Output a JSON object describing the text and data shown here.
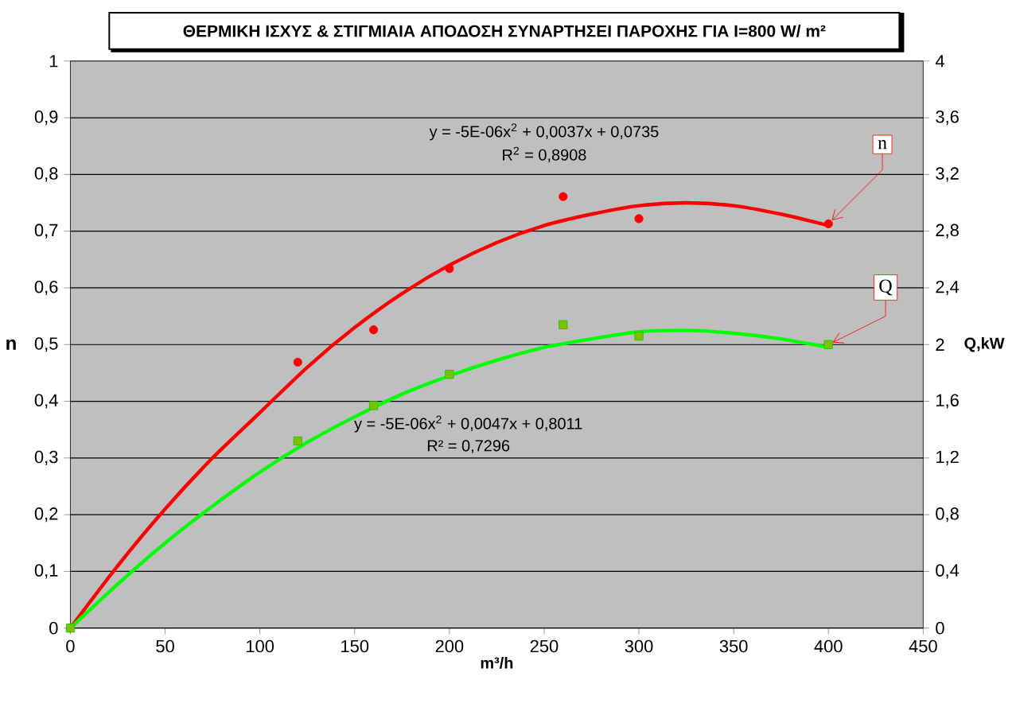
{
  "chart_data": {
    "type": "scatter",
    "title": "ΘΕΡΜΙΚΗ ΙΣΧΥΣ & ΣΤΙΓΜΙΑΙΑ ΑΠΟΔΟΣΗ ΣΥΝΑΡΤΗΣΕΙ ΠΑΡΟΧΗΣ ΓΙΑ  I=800 W/ m²",
    "xlabel": "m³/h",
    "ylabel": "n",
    "y2label": "Q,kW",
    "annotations": [
      "y = -5E-06x$^{2}$ + 0,0037x + 0,0735",
      "R$^{2}$ = 0,8908",
      "y = -5E-06x$^{2}$ + 0,0047x + 0,8011",
      "R² = 0,7296"
    ],
    "series": [
      {
        "name": "n",
        "marker": "circle",
        "color": "#ff0000",
        "x": [
          0,
          120,
          160,
          200,
          260,
          300,
          400
        ],
        "values": [
          0,
          0.469,
          0.526,
          0.634,
          0.761,
          0.722,
          0.713
        ]
      },
      {
        "type": "line",
        "color": "#ff0000",
        "x": [
          0,
          25,
          50,
          75,
          100,
          125,
          150,
          175,
          200,
          225,
          250,
          275,
          300,
          325,
          350,
          375,
          400
        ],
        "values": [
          0,
          0.11,
          0.21,
          0.3,
          0.38,
          0.46,
          0.53,
          0.59,
          0.64,
          0.68,
          0.71,
          0.73,
          0.745,
          0.75,
          0.745,
          0.73,
          0.71
        ]
      },
      {
        "name": "Q",
        "marker": "square",
        "axis": "y2",
        "color": "#80c000",
        "x": [
          0,
          120,
          160,
          200,
          260,
          300,
          400
        ],
        "values": [
          0,
          1.32,
          1.57,
          1.79,
          2.14,
          2.06,
          2.0
        ]
      },
      {
        "type": "line",
        "axis": "y2",
        "color": "#00ff00",
        "x": [
          0,
          25,
          50,
          75,
          100,
          125,
          150,
          175,
          200,
          225,
          250,
          275,
          300,
          325,
          350,
          375,
          400
        ],
        "values": [
          0,
          0.31,
          0.6,
          0.86,
          1.1,
          1.31,
          1.49,
          1.65,
          1.78,
          1.89,
          1.98,
          2.04,
          2.09,
          2.1,
          2.08,
          2.04,
          1.98
        ]
      }
    ],
    "xlim": [
      0,
      450
    ],
    "xticks": [
      0,
      50,
      100,
      150,
      200,
      250,
      300,
      350,
      400,
      450
    ],
    "ylim": [
      0,
      1
    ],
    "yticks": [
      0,
      {
        "value": 0.1,
        "label": "0,1"
      },
      {
        "value": 0.2,
        "label": "0,2"
      },
      {
        "value": 0.3,
        "label": "0,3"
      },
      {
        "value": 0.4,
        "label": "0,4"
      },
      {
        "value": 0.5,
        "label": "0,5"
      },
      {
        "value": 0.6,
        "label": "0,6"
      },
      {
        "value": 0.7,
        "label": "0,7"
      },
      {
        "value": 0.8,
        "label": "0,8"
      },
      {
        "value": 0.9,
        "label": "0,9"
      },
      1
    ],
    "y2lim": [
      0,
      4
    ],
    "y2ticks": [
      0,
      {
        "value": 0.4,
        "label": "0,4"
      },
      {
        "value": 0.8,
        "label": "0,8"
      },
      {
        "value": 1.2,
        "label": "1,2"
      },
      {
        "value": 1.6,
        "label": "1,6"
      },
      2,
      {
        "value": 2.4,
        "label": "2,4"
      },
      {
        "value": 2.8,
        "label": "2,8"
      },
      {
        "value": 3.2,
        "label": "3,2"
      },
      {
        "value": 3.6,
        "label": "3,6"
      },
      4
    ],
    "grid": "y"
  }
}
